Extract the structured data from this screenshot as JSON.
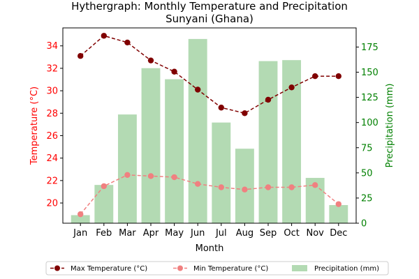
{
  "chart_data": {
    "type": "bar+line",
    "title": "Hythergraph: Monthly Temperature and Precipitation",
    "subtitle": "Sunyani (Ghana)",
    "xlabel": "Month",
    "ylabel_left": "Temperature (°C)",
    "ylabel_right": "Precipitation (mm)",
    "categories": [
      "Jan",
      "Feb",
      "Mar",
      "Apr",
      "May",
      "Jun",
      "Jul",
      "Aug",
      "Sep",
      "Oct",
      "Nov",
      "Dec"
    ],
    "y_left": {
      "range": [
        18.2,
        35.6
      ],
      "ticks": [
        "20",
        "22",
        "24",
        "26",
        "28",
        "30",
        "32",
        "34"
      ],
      "color": "#ff0000"
    },
    "y_right": {
      "range": [
        0,
        194
      ],
      "ticks": [
        "0",
        "25",
        "50",
        "75",
        "100",
        "125",
        "150",
        "175"
      ],
      "color": "#008000"
    },
    "grid": false,
    "legend_position": "bottom",
    "series": [
      {
        "name": "Max Temperature (°C)",
        "kind": "line",
        "axis": "left",
        "color": "#800000",
        "line_style": "dashed",
        "marker": "circle",
        "values": [
          33.1,
          34.9,
          34.3,
          32.7,
          31.7,
          30.1,
          28.5,
          28.0,
          29.2,
          30.3,
          31.3,
          31.3
        ]
      },
      {
        "name": "Min Temperature (°C)",
        "kind": "line",
        "axis": "left",
        "color": "#f08080",
        "line_style": "dashed",
        "marker": "circle",
        "values": [
          19.0,
          21.5,
          22.5,
          22.4,
          22.3,
          21.7,
          21.4,
          21.2,
          21.4,
          21.4,
          21.6,
          19.9
        ]
      },
      {
        "name": "Precipitation (mm)",
        "kind": "bar",
        "axis": "right",
        "color": "#b3dab3",
        "values": [
          8,
          38,
          108,
          154,
          143,
          183,
          100,
          74,
          161,
          162,
          45,
          18
        ]
      }
    ]
  }
}
